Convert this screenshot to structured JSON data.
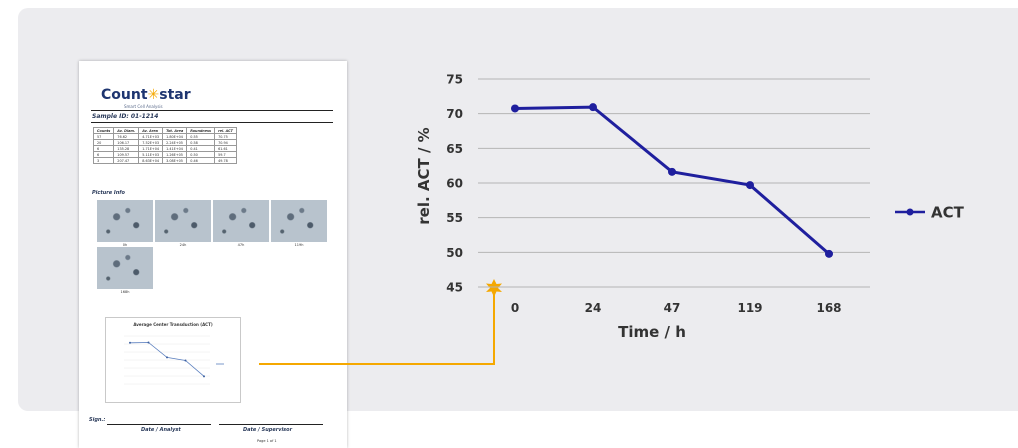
{
  "report": {
    "logo_text_a": "Count",
    "logo_text_dot": "✳",
    "logo_text_b": "star",
    "tagline": "Smart Cell Analysis",
    "sample_label": "Sample ID:",
    "sample_id": "01-1214",
    "table_headers": [
      "Counts",
      "Av. Diam.",
      "Av. Area",
      "Tot. Area",
      "Roundness",
      "rel. ACT"
    ],
    "table_rows": [
      [
        "57",
        "76.62",
        "4.71E+03",
        "1.80E+04",
        "0.55",
        "70.75"
      ],
      [
        "20",
        "106.17",
        "7.52E+03",
        "2.24E+05",
        "0.58",
        "70.94"
      ],
      [
        "6",
        "135.28",
        "1.71E+04",
        "1.41E+04",
        "0.41",
        "61.61"
      ],
      [
        "6",
        "109.57",
        "5.11E+03",
        "1.26E+05",
        "0.50",
        "59.7"
      ],
      [
        "3",
        "207.47",
        "8.63E+04",
        "3.08E+05",
        "0.46",
        "49.78"
      ]
    ],
    "picture_info_label": "Picture Info",
    "thumb_labels": [
      "0h",
      "24h",
      "47h",
      "119h",
      "168h"
    ],
    "mini_chart_title": "Average Center Transduction (ACT)",
    "sign_label": "Sign.:",
    "date_analyst": "Date / Analyst",
    "date_supervisor": "Date / Supervisor",
    "page_label": "Page 1 of 1"
  },
  "colors": {
    "series": "#1f1f9e",
    "connector": "#f5a800",
    "panel": "#ececef"
  },
  "chart_data": {
    "type": "line",
    "categories": [
      "0",
      "24",
      "47",
      "119",
      "168"
    ],
    "series": [
      {
        "name": "ACT",
        "values": [
          70.75,
          70.94,
          61.61,
          59.7,
          49.78
        ]
      }
    ],
    "title": "",
    "xlabel": "Time / h",
    "ylabel": "rel. ACT / %",
    "ylim": [
      45,
      75
    ],
    "yticks": [
      45,
      50,
      55,
      60,
      65,
      70,
      75
    ],
    "grid": true,
    "legend": "right"
  }
}
